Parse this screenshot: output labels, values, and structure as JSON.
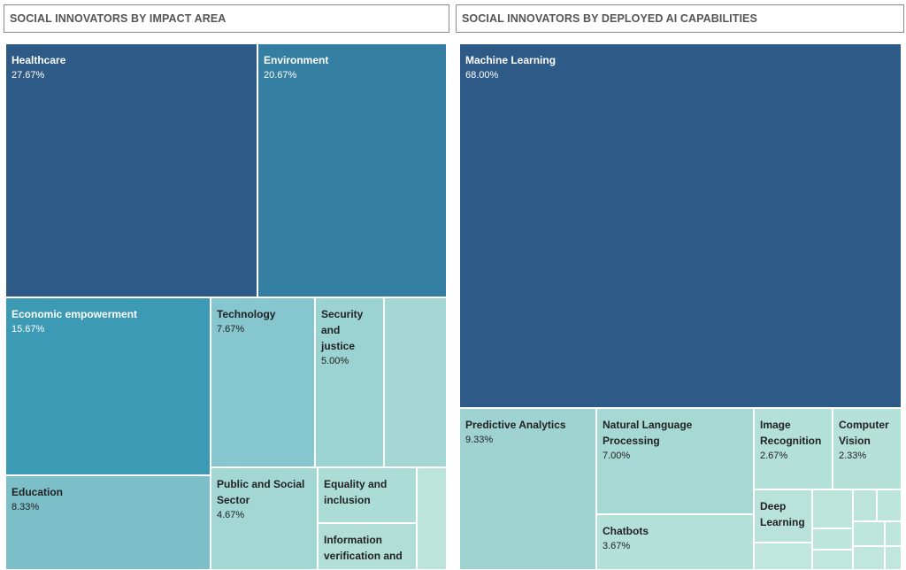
{
  "panels": {
    "left_title": "SOCIAL INNOVATORS BY IMPACT AREA",
    "right_title": "SOCIAL INNOVATORS BY DEPLOYED AI CAPABILITIES"
  },
  "chart_data": [
    {
      "type": "treemap",
      "title": "SOCIAL INNOVATORS BY IMPACT AREA",
      "items": [
        {
          "label": "Healthcare",
          "value": 27.67,
          "value_text": "27.67%",
          "color": "#2d5a86"
        },
        {
          "label": "Environment",
          "value": 20.67,
          "value_text": "20.67%",
          "color": "#347ea1"
        },
        {
          "label": "Economic empowerment",
          "value": 15.67,
          "value_text": "15.67%",
          "color": "#3c9ab5"
        },
        {
          "label": "Education",
          "value": 8.33,
          "value_text": "8.33%",
          "color": "#7cbfc9"
        },
        {
          "label": "Technology",
          "value": 7.67,
          "value_text": "7.67%",
          "color": "#86c6cf"
        },
        {
          "label": "Security and justice",
          "value": 5.0,
          "value_text": "5.00%",
          "color": "#9ad3d1"
        },
        {
          "label": "Public and Social Sector",
          "value": 4.67,
          "value_text": "4.67%",
          "color": "#a3d7d3"
        },
        {
          "label": "Equality and inclusion",
          "value": null,
          "value_text": "",
          "color": "#acdcd6"
        },
        {
          "label": "Information verification and",
          "value": null,
          "value_text": "",
          "color": "#b1dfd8"
        },
        {
          "label": "",
          "value": null,
          "value_text": "",
          "color": "#a4d6d3"
        },
        {
          "label": "",
          "value": null,
          "value_text": "",
          "color": "#bde4da"
        }
      ]
    },
    {
      "type": "treemap",
      "title": "SOCIAL INNOVATORS BY DEPLOYED AI CAPABILITIES",
      "items": [
        {
          "label": "Machine Learning",
          "value": 68.0,
          "value_text": "68.00%",
          "color": "#2d5a86"
        },
        {
          "label": "Predictive Analytics",
          "value": 9.33,
          "value_text": "9.33%",
          "color": "#9fd3d2"
        },
        {
          "label": "Natural Language Processing",
          "value": 7.0,
          "value_text": "7.00%",
          "color": "#a6d9d4"
        },
        {
          "label": "Chatbots",
          "value": 3.67,
          "value_text": "3.67%",
          "color": "#b3e0d8"
        },
        {
          "label": "Image Recognition",
          "value": 2.67,
          "value_text": "2.67%",
          "color": "#b3e0d8"
        },
        {
          "label": "Computer Vision",
          "value": 2.33,
          "value_text": "2.33%",
          "color": "#b6e1d9"
        },
        {
          "label": "Deep Learning",
          "value": null,
          "value_text": "",
          "color": "#b8e2da"
        },
        {
          "label": "",
          "value": null,
          "value_text": "",
          "color": "#bce4db"
        },
        {
          "label": "",
          "value": null,
          "value_text": "",
          "color": "#bce4db"
        },
        {
          "label": "",
          "value": null,
          "value_text": "",
          "color": "#bee5dc"
        },
        {
          "label": "",
          "value": null,
          "value_text": "",
          "color": "#bee5dc"
        },
        {
          "label": "",
          "value": null,
          "value_text": "",
          "color": "#bfe6dc"
        },
        {
          "label": "",
          "value": null,
          "value_text": "",
          "color": "#bfe6dc"
        },
        {
          "label": "",
          "value": null,
          "value_text": "",
          "color": "#c0e6dd"
        },
        {
          "label": "",
          "value": null,
          "value_text": "",
          "color": "#c0e6dd"
        },
        {
          "label": "",
          "value": null,
          "value_text": "",
          "color": "#c0e6dd"
        },
        {
          "label": "",
          "value": null,
          "value_text": "",
          "color": "#c0e6dd"
        }
      ]
    }
  ]
}
